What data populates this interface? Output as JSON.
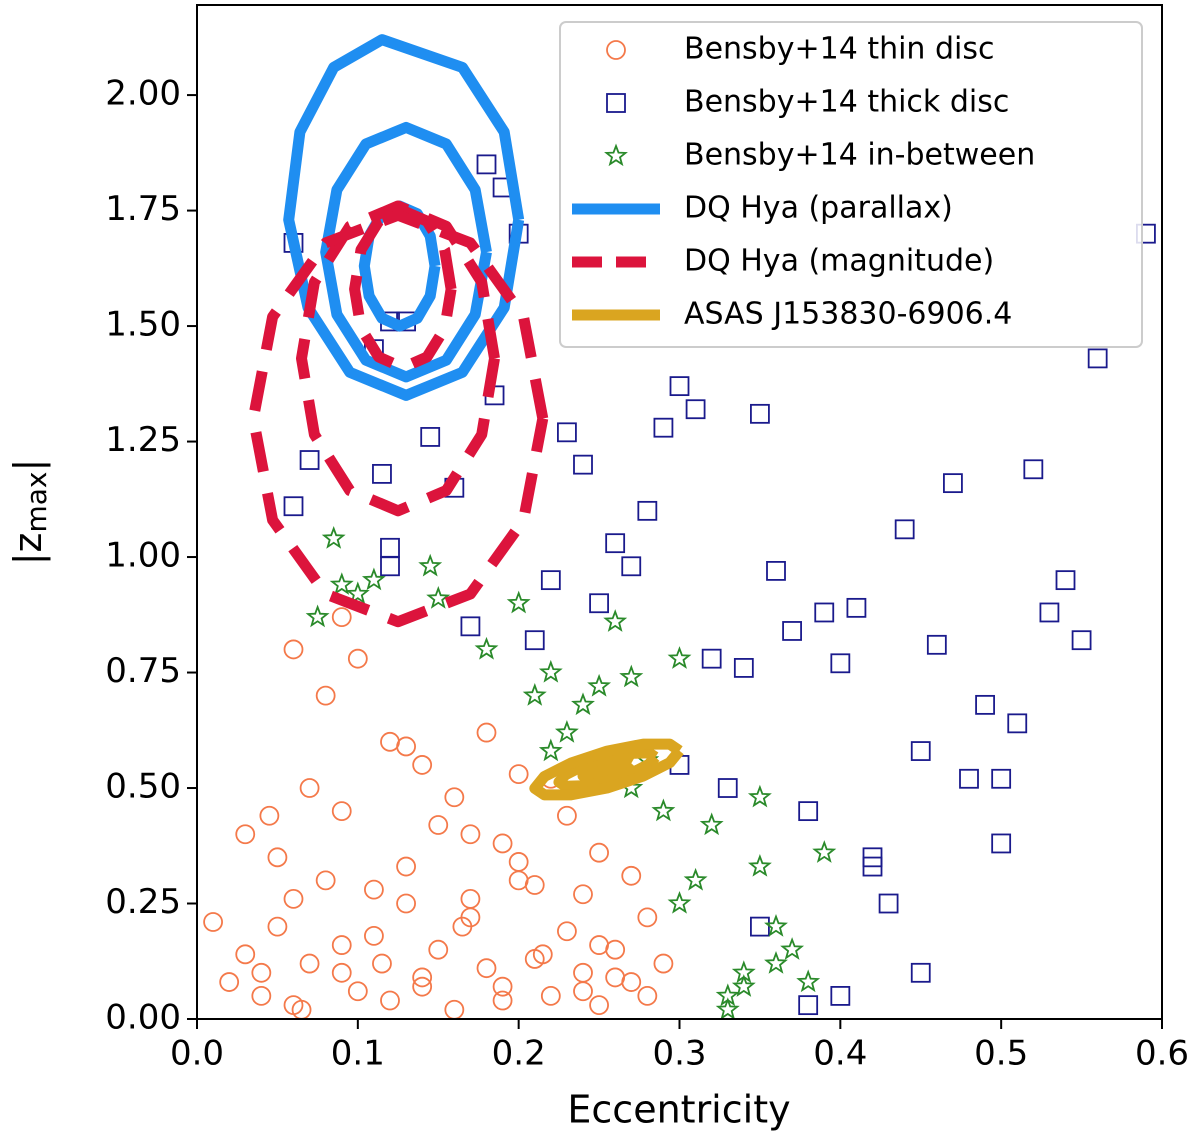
{
  "chart_data": {
    "type": "scatter",
    "xlabel": "Eccentricity",
    "ylabel": [
      "|z",
      "max",
      "|"
    ],
    "xlim": [
      0,
      0.6
    ],
    "ylim": [
      0,
      2.195
    ],
    "xticks": [
      {
        "value": 0,
        "label": "0.0"
      },
      {
        "value": 0.1,
        "label": "0.1"
      },
      {
        "value": 0.2,
        "label": "0.2"
      },
      {
        "value": 0.3,
        "label": "0.3"
      },
      {
        "value": 0.4,
        "label": "0.4"
      },
      {
        "value": 0.5,
        "label": "0.5"
      },
      {
        "value": 0.6,
        "label": "0.6"
      }
    ],
    "yticks": [
      {
        "value": 0,
        "label": "0.00"
      },
      {
        "value": 0.25,
        "label": "0.25"
      },
      {
        "value": 0.5,
        "label": "0.50"
      },
      {
        "value": 0.75,
        "label": "0.75"
      },
      {
        "value": 1,
        "label": "1.00"
      },
      {
        "value": 1.25,
        "label": "1.25"
      },
      {
        "value": 1.5,
        "label": "1.50"
      },
      {
        "value": 1.75,
        "label": "1.75"
      },
      {
        "value": 2,
        "label": "2.00"
      }
    ],
    "legend": "upper right",
    "series": [
      {
        "name": "Bensby+14 thin disc",
        "type": "scatter",
        "marker": "circle",
        "color": "#f4794a",
        "x": [
          0.01,
          0.02,
          0.03,
          0.04,
          0.05,
          0.06,
          0.07,
          0.08,
          0.09,
          0.1,
          0.11,
          0.12,
          0.13,
          0.14,
          0.15,
          0.16,
          0.17,
          0.18,
          0.19,
          0.2,
          0.21,
          0.22,
          0.23,
          0.24,
          0.25,
          0.26,
          0.27,
          0.28,
          0.29,
          0.03,
          0.05,
          0.07,
          0.09,
          0.11,
          0.13,
          0.15,
          0.17,
          0.19,
          0.21,
          0.23,
          0.25,
          0.27,
          0.06,
          0.08,
          0.1,
          0.12,
          0.14,
          0.16,
          0.18,
          0.2,
          0.22,
          0.24,
          0.26,
          0.28,
          0.04,
          0.065,
          0.09,
          0.115,
          0.14,
          0.165,
          0.19,
          0.215,
          0.24,
          0.06,
          0.09,
          0.045,
          0.13,
          0.17,
          0.2,
          0.25
        ],
        "values": [
          0.21,
          0.08,
          0.14,
          0.05,
          0.2,
          0.03,
          0.12,
          0.3,
          0.1,
          0.06,
          0.18,
          0.04,
          0.25,
          0.09,
          0.15,
          0.02,
          0.22,
          0.11,
          0.07,
          0.3,
          0.13,
          0.05,
          0.19,
          0.1,
          0.03,
          0.15,
          0.08,
          0.22,
          0.12,
          0.4,
          0.35,
          0.5,
          0.45,
          0.28,
          0.33,
          0.42,
          0.26,
          0.38,
          0.29,
          0.44,
          0.36,
          0.31,
          0.8,
          0.7,
          0.78,
          0.6,
          0.55,
          0.48,
          0.62,
          0.34,
          0.52,
          0.27,
          0.09,
          0.05,
          0.1,
          0.02,
          0.16,
          0.12,
          0.07,
          0.2,
          0.04,
          0.14,
          0.06,
          0.26,
          0.87,
          0.44,
          0.59,
          0.4,
          0.53,
          0.16
        ]
      },
      {
        "name": "Bensby+14 thick disc",
        "type": "scatter",
        "marker": "square",
        "color": "#1a1a8c",
        "x": [
          0.06,
          0.06,
          0.07,
          0.11,
          0.115,
          0.12,
          0.13,
          0.12,
          0.12,
          0.145,
          0.16,
          0.17,
          0.18,
          0.185,
          0.19,
          0.2,
          0.21,
          0.22,
          0.23,
          0.24,
          0.25,
          0.26,
          0.27,
          0.28,
          0.29,
          0.3,
          0.31,
          0.32,
          0.33,
          0.34,
          0.35,
          0.36,
          0.37,
          0.38,
          0.39,
          0.4,
          0.41,
          0.42,
          0.43,
          0.44,
          0.45,
          0.46,
          0.47,
          0.48,
          0.49,
          0.5,
          0.51,
          0.52,
          0.53,
          0.54,
          0.55,
          0.56,
          0.59,
          0.3,
          0.35,
          0.4,
          0.45,
          0.5,
          0.38,
          0.42
        ],
        "values": [
          1.68,
          1.11,
          1.21,
          1.45,
          1.18,
          1.51,
          1.51,
          1.02,
          0.98,
          1.26,
          1.15,
          0.85,
          1.85,
          1.35,
          1.8,
          1.7,
          0.82,
          0.95,
          1.27,
          1.2,
          0.9,
          1.03,
          0.98,
          1.1,
          1.28,
          1.37,
          1.32,
          0.78,
          0.5,
          0.76,
          1.31,
          0.97,
          0.84,
          0.45,
          0.88,
          0.77,
          0.89,
          0.33,
          0.25,
          1.06,
          0.58,
          0.81,
          1.16,
          0.52,
          0.68,
          0.52,
          0.64,
          1.19,
          0.88,
          0.95,
          0.82,
          1.43,
          1.7,
          0.55,
          0.2,
          0.05,
          0.1,
          0.38,
          0.03,
          0.35
        ]
      },
      {
        "name": "Bensby+14 in-between",
        "type": "scatter",
        "marker": "star",
        "color": "#2a8a2a",
        "x": [
          0.075,
          0.085,
          0.09,
          0.1,
          0.11,
          0.145,
          0.15,
          0.18,
          0.2,
          0.21,
          0.22,
          0.23,
          0.24,
          0.25,
          0.26,
          0.27,
          0.28,
          0.29,
          0.3,
          0.31,
          0.32,
          0.33,
          0.34,
          0.35,
          0.36,
          0.37,
          0.38,
          0.39,
          0.33,
          0.34,
          0.35,
          0.36,
          0.3,
          0.22,
          0.27
        ],
        "values": [
          0.87,
          1.04,
          0.94,
          0.92,
          0.95,
          0.98,
          0.91,
          0.8,
          0.9,
          0.7,
          0.75,
          0.62,
          0.68,
          0.72,
          0.86,
          0.74,
          0.56,
          0.45,
          0.78,
          0.3,
          0.42,
          0.05,
          0.1,
          0.33,
          0.2,
          0.15,
          0.08,
          0.36,
          0.02,
          0.07,
          0.48,
          0.12,
          0.25,
          0.58,
          0.5
        ]
      },
      {
        "name": "DQ Hya (parallax)",
        "type": "line",
        "dash": "solid",
        "color": "#1f8ef1",
        "x": [
          0.148,
          0.145,
          0.137,
          0.126,
          0.115,
          0.107,
          0.104,
          0.107,
          0.115,
          0.126,
          0.137,
          0.145,
          0.148,
          null,
          0.18,
          0.173,
          0.155,
          0.13,
          0.105,
          0.087,
          0.08,
          0.087,
          0.105,
          0.13,
          0.155,
          0.173,
          0.18,
          null,
          0.2,
          0.191,
          0.165,
          0.115,
          0.085,
          0.064,
          0.057,
          0.069,
          0.095,
          0.13,
          0.165,
          0.191,
          0.2
        ],
        "values": [
          1.63,
          1.695,
          1.743,
          1.76,
          1.743,
          1.695,
          1.63,
          1.565,
          1.517,
          1.5,
          1.517,
          1.565,
          1.63,
          null,
          1.66,
          1.795,
          1.894,
          1.93,
          1.894,
          1.795,
          1.66,
          1.525,
          1.426,
          1.39,
          1.426,
          1.525,
          1.66,
          null,
          1.73,
          1.92,
          2.06,
          2.12,
          2.06,
          1.92,
          1.73,
          1.54,
          1.4,
          1.35,
          1.4,
          1.54,
          1.73
        ]
      },
      {
        "name": "DQ Hya (magnitude)",
        "type": "line",
        "dash": "dashed",
        "color": "#dc143c",
        "x": [
          0.158,
          0.154,
          0.143,
          0.128,
          0.113,
          0.102,
          0.098,
          0.102,
          0.113,
          0.128,
          0.143,
          0.154,
          0.158,
          null,
          0.185,
          0.177,
          0.155,
          0.125,
          0.095,
          0.073,
          0.065,
          0.073,
          0.095,
          0.125,
          0.155,
          0.177,
          0.185,
          null,
          0.215,
          0.203,
          0.17,
          0.125,
          0.08,
          0.047,
          0.035,
          0.047,
          0.08,
          0.125,
          0.17,
          0.203,
          0.215
        ],
        "values": [
          1.58,
          1.665,
          1.727,
          1.75,
          1.727,
          1.665,
          1.58,
          1.495,
          1.433,
          1.41,
          1.433,
          1.495,
          1.58,
          null,
          1.43,
          1.595,
          1.716,
          1.76,
          1.716,
          1.595,
          1.43,
          1.265,
          1.144,
          1.1,
          1.144,
          1.265,
          1.43,
          null,
          1.3,
          1.52,
          1.68,
          1.74,
          1.68,
          1.52,
          1.3,
          1.08,
          0.92,
          0.86,
          0.92,
          1.08,
          1.3
        ]
      },
      {
        "name": "ASAS J153830-6906.4",
        "type": "line",
        "dash": "solid",
        "color": "#daa520",
        "x": [
          0.27,
          0.268,
          0.2625,
          0.255,
          0.2475,
          0.242,
          0.24,
          0.242,
          0.2475,
          0.255,
          0.2625,
          0.268,
          0.27,
          null,
          0.285,
          0.281,
          0.27,
          0.255,
          0.24,
          0.229,
          0.225,
          0.229,
          0.24,
          0.255,
          0.27,
          0.281,
          0.285,
          null,
          0.3,
          0.294,
          0.2775,
          0.255,
          0.2325,
          0.216,
          0.21,
          0.216,
          0.2325,
          0.255,
          0.2775,
          0.294,
          0.3
        ],
        "values": [
          0.5535,
          0.5577,
          0.5572,
          0.552,
          0.5436,
          0.5343,
          0.5265,
          0.5223,
          0.5228,
          0.528,
          0.5364,
          0.5457,
          0.5535,
          null,
          0.567,
          0.576,
          0.5752,
          0.565,
          0.5482,
          0.5284,
          0.513,
          0.504,
          0.5048,
          0.515,
          0.5318,
          0.5516,
          0.567,
          null,
          0.5805,
          0.595,
          0.595,
          0.58,
          0.554,
          0.525,
          0.4995,
          0.485,
          0.485,
          0.5,
          0.526,
          0.555,
          0.5805
        ]
      }
    ]
  }
}
